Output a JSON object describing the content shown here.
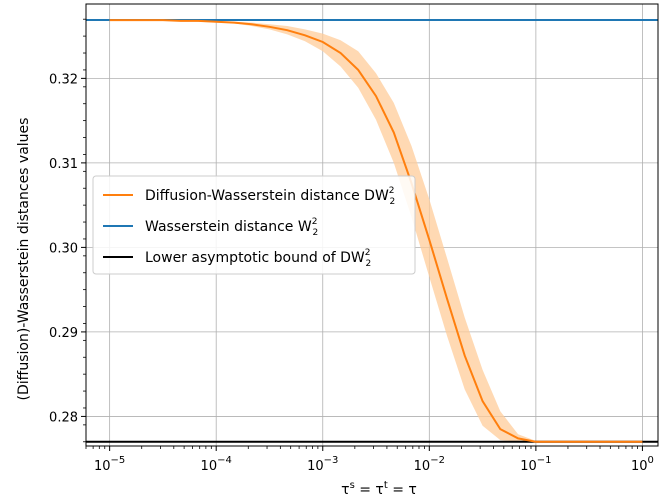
{
  "chart_data": {
    "type": "line",
    "xscale": "log",
    "xlim": [
      6e-06,
      1.4
    ],
    "ylim": [
      0.2765,
      0.3288
    ],
    "xticks": [
      {
        "value": 1e-05,
        "base": "10",
        "exp": "−5"
      },
      {
        "value": 0.0001,
        "base": "10",
        "exp": "−4"
      },
      {
        "value": 0.001,
        "base": "10",
        "exp": "−3"
      },
      {
        "value": 0.01,
        "base": "10",
        "exp": "−2"
      },
      {
        "value": 0.1,
        "base": "10",
        "exp": "−1"
      },
      {
        "value": 1,
        "base": "10",
        "exp": "0"
      }
    ],
    "yticks": [
      {
        "value": 0.28,
        "label": "0.28"
      },
      {
        "value": 0.29,
        "label": "0.29"
      },
      {
        "value": 0.3,
        "label": "0.30"
      },
      {
        "value": 0.31,
        "label": "0.31"
      },
      {
        "value": 0.32,
        "label": "0.32"
      }
    ],
    "xlabel_parts": [
      "τ",
      "s",
      " = τ",
      "t",
      " = τ"
    ],
    "ylabel": "(Diffusion)-Wasserstein distances values",
    "grid": true,
    "legend_position": "center-left",
    "series": [
      {
        "name": "Diffusion-Wasserstein distance DW",
        "name_sub": "2",
        "name_sup": "2",
        "color": "#ff7f0e",
        "band_color": "#ffcc99",
        "x": [
          1e-05,
          1.47e-05,
          2.15e-05,
          3.16e-05,
          4.64e-05,
          6.81e-05,
          0.0001,
          0.000147,
          0.000215,
          0.000316,
          0.000464,
          0.000681,
          0.001,
          0.00147,
          0.00215,
          0.00316,
          0.00464,
          0.00681,
          0.01,
          0.0147,
          0.0215,
          0.0316,
          0.0464,
          0.0681,
          0.1,
          0.147,
          0.215,
          0.316,
          0.464,
          0.681,
          1
        ],
        "y": [
          0.3269,
          0.3269,
          0.3269,
          0.3269,
          0.3268,
          0.3268,
          0.3267,
          0.3266,
          0.3264,
          0.3261,
          0.3257,
          0.3251,
          0.3243,
          0.323,
          0.321,
          0.3179,
          0.3136,
          0.3076,
          0.3009,
          0.2939,
          0.2872,
          0.2818,
          0.2785,
          0.2774,
          0.277,
          0.277,
          0.277,
          0.277,
          0.277,
          0.277,
          0.277
        ],
        "lower": [
          0.3269,
          0.3269,
          0.3269,
          0.3268,
          0.3268,
          0.3267,
          0.3266,
          0.3265,
          0.3262,
          0.3258,
          0.3252,
          0.3244,
          0.3232,
          0.3214,
          0.3189,
          0.3151,
          0.31,
          0.3036,
          0.2965,
          0.2895,
          0.2832,
          0.2789,
          0.2772,
          0.277,
          0.277,
          0.277,
          0.277,
          0.277,
          0.277,
          0.277,
          0.277
        ],
        "upper": [
          0.3269,
          0.3269,
          0.3269,
          0.3269,
          0.3269,
          0.3269,
          0.3268,
          0.3267,
          0.3266,
          0.3264,
          0.3262,
          0.3258,
          0.3253,
          0.3245,
          0.3232,
          0.3206,
          0.3171,
          0.312,
          0.3057,
          0.2987,
          0.2917,
          0.2855,
          0.2806,
          0.2779,
          0.2771,
          0.277,
          0.277,
          0.277,
          0.277,
          0.277,
          0.277
        ]
      },
      {
        "name": "Wasserstein distance W",
        "name_sub": "2",
        "name_sup": "2",
        "color": "#1f77b4",
        "y_const": 0.3269
      },
      {
        "name": "Lower asymptotic bound of DW",
        "name_sub": "2",
        "name_sup": "2",
        "color": "#000000",
        "y_const": 0.277
      }
    ]
  }
}
